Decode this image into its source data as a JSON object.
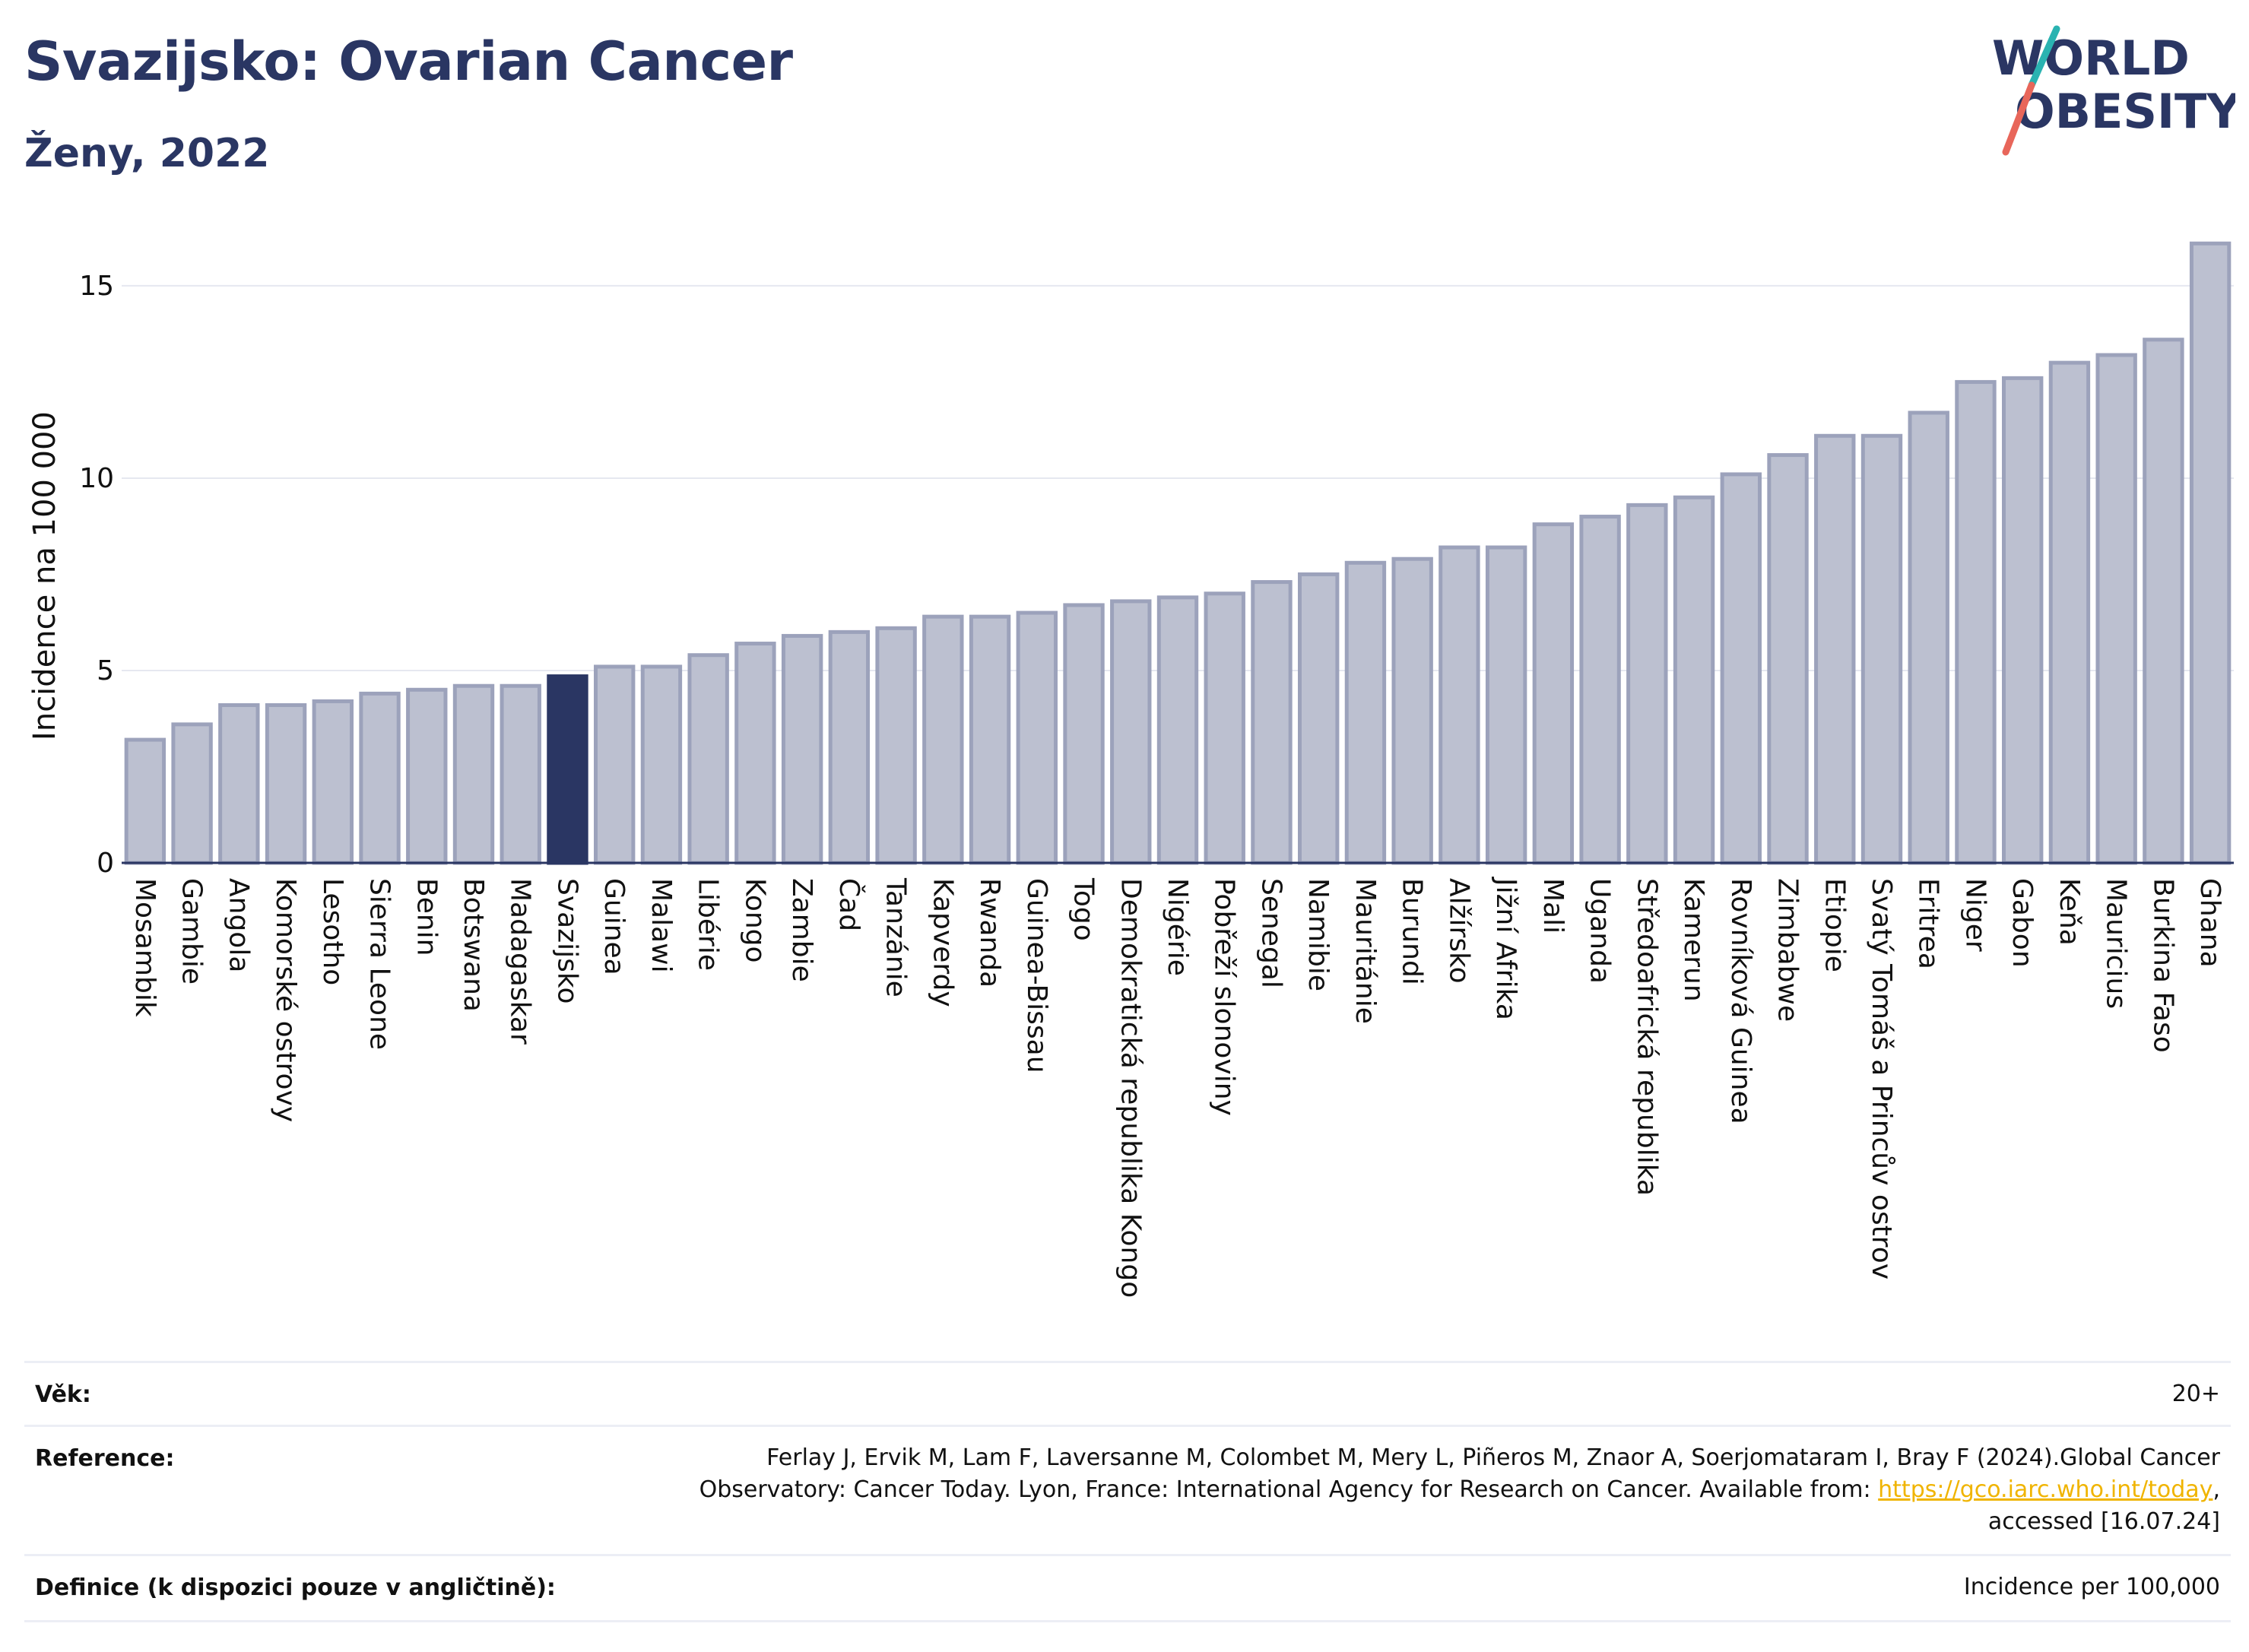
{
  "header": {
    "title": "Svazijsko: Ovarian Cancer",
    "subtitle": "Ženy, 2022"
  },
  "logo": {
    "line1": "WORLD",
    "line2": "OBESITY",
    "colors": {
      "text": "#2a3663",
      "slash_top": "#2ab3b1",
      "slash_bottom": "#e8665a"
    }
  },
  "chart_data": {
    "type": "bar",
    "ylabel": "Incidence na 100 000",
    "xlabel": "",
    "ylim": [
      0,
      16.5
    ],
    "yticks": [
      0,
      5,
      10,
      15
    ],
    "grid": true,
    "highlight": "Svazijsko",
    "colors": {
      "bar": "#bcc0d0",
      "bar_border": "#9ca2bb",
      "highlight": "#2a3663"
    },
    "categories": [
      "Mosambik",
      "Gambie",
      "Angola",
      "Komorské ostrovy",
      "Lesotho",
      "Sierra Leone",
      "Benin",
      "Botswana",
      "Madagaskar",
      "Svazijsko",
      "Guinea",
      "Malawi",
      "Libérie",
      "Kongo",
      "Zambie",
      "Čad",
      "Tanzánie",
      "Kapverdy",
      "Rwanda",
      "Guinea-Bissau",
      "Togo",
      "Demokratická republika Kongo",
      "Nigérie",
      "Pobřeží slonoviny",
      "Senegal",
      "Namibie",
      "Mauritánie",
      "Burundi",
      "Alžírsko",
      "Jižní Afrika",
      "Mali",
      "Uganda",
      "Středoafrická republika",
      "Kamerun",
      "Rovníková Guinea",
      "Zimbabwe",
      "Etiopie",
      "Svatý Tomáš a Princův ostrov",
      "Eritrea",
      "Niger",
      "Gabon",
      "Keňa",
      "Mauricius",
      "Burkina Faso",
      "Ghana"
    ],
    "values": [
      3.2,
      3.6,
      4.1,
      4.1,
      4.2,
      4.4,
      4.5,
      4.6,
      4.6,
      4.85,
      5.1,
      5.1,
      5.4,
      5.7,
      5.9,
      6.0,
      6.1,
      6.4,
      6.4,
      6.5,
      6.7,
      6.8,
      6.9,
      7.0,
      7.3,
      7.5,
      7.8,
      7.9,
      8.2,
      8.2,
      8.8,
      9.0,
      9.3,
      9.5,
      10.1,
      10.6,
      11.1,
      11.1,
      11.7,
      12.5,
      12.6,
      13.0,
      13.2,
      13.6,
      16.1
    ]
  },
  "meta": {
    "age_label": "Věk:",
    "age_value": "20+",
    "reference_label": "Reference:",
    "reference_line1": "Ferlay J, Ervik M, Lam F, Laversanne M, Colombet M, Mery L, Piñeros M, Znaor A, Soerjomataram I, Bray F (2024).Global Cancer",
    "reference_line2_text": "Observatory: Cancer Today. Lyon, France: International Agency for Research on Cancer. Available from: ",
    "reference_link": "https://gco.iarc.who.int/today",
    "reference_line2_end": ",",
    "reference_line3": "accessed [16.07.24]",
    "definition_label": "Definice (k dispozici pouze v angličtině):",
    "definition_value": "Incidence per 100,000"
  }
}
